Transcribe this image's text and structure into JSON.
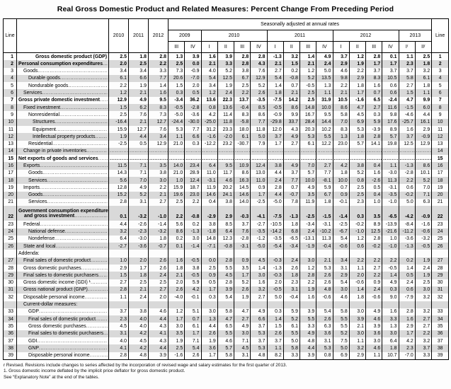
{
  "title": "Real Gross Domestic Product and Related Measures: Percent Change From Preceding Period",
  "header": {
    "line_label": "Line",
    "sa_label": "Seasonally adjusted at annual rates",
    "annual_years": [
      "2010",
      "2011",
      "2012"
    ],
    "year_groups": [
      {
        "year": "2009",
        "quarters": [
          "III",
          "IV"
        ]
      },
      {
        "year": "2010",
        "quarters": [
          "I",
          "II",
          "III",
          "IV"
        ]
      },
      {
        "year": "2011",
        "quarters": [
          "I",
          "II",
          "III",
          "IV"
        ]
      },
      {
        "year": "2012",
        "quarters": [
          "I",
          "II",
          "III",
          "IV"
        ]
      },
      {
        "year": "2013",
        "quarters": [
          "Iʳ",
          "IIʳ"
        ]
      }
    ]
  },
  "rows": [
    {
      "line": "1",
      "label": "Gross domestic product (GDP)",
      "indent": 4,
      "bold": true,
      "values": [
        "2.5",
        "1.8",
        "2.8",
        "1.3",
        "3.9",
        "1.6",
        "3.9",
        "2.8",
        "2.8",
        "-1.3",
        "3.2",
        "1.4",
        "4.9",
        "3.7",
        "1.2",
        "2.8",
        "0.1",
        "1.1",
        "2.5"
      ]
    },
    {
      "line": "2",
      "label": "Personal consumption expenditures",
      "indent": 0,
      "bold": true,
      "values": [
        "2.0",
        "2.5",
        "2.2",
        "2.5",
        "0.0",
        "2.1",
        "3.3",
        "2.8",
        "4.3",
        "2.1",
        "1.5",
        "2.1",
        "2.4",
        "2.9",
        "1.9",
        "1.7",
        "1.7",
        "2.3",
        "1.8"
      ]
    },
    {
      "line": "3",
      "label": "Goods",
      "indent": 1,
      "values": [
        "3.4",
        "3.4",
        "3.3",
        "7.3",
        "-0.9",
        "4.0",
        "5.2",
        "3.8",
        "7.6",
        "2.7",
        "0.2",
        "1.2",
        "5.0",
        "4.6",
        "2.2",
        "3.7",
        "3.7",
        "3.7",
        "3.2"
      ]
    },
    {
      "line": "4",
      "label": "Durable goods",
      "indent": 2,
      "values": [
        "6.1",
        "6.6",
        "7.7",
        "20.6",
        "-7.0",
        "5.4",
        "12.5",
        "6.7",
        "12.9",
        "5.4",
        "-0.8",
        "5.2",
        "13.5",
        "9.8",
        "2.9",
        "8.3",
        "10.5",
        "5.8",
        "6.1"
      ]
    },
    {
      "line": "5",
      "label": "Nondurable goods",
      "indent": 2,
      "values": [
        "2.2",
        "1.9",
        "1.4",
        "1.5",
        "2.0",
        "3.4",
        "1.9",
        "2.5",
        "5.2",
        "1.4",
        "0.7",
        "-0.5",
        "1.3",
        "2.2",
        "1.8",
        "1.6",
        "0.6",
        "2.7",
        "1.8"
      ]
    },
    {
      "line": "6",
      "label": "Services",
      "indent": 1,
      "values": [
        "1.2",
        "2.1",
        "1.6",
        "0.3",
        "0.5",
        "1.2",
        "2.4",
        "2.2",
        "2.6",
        "1.8",
        "2.1",
        "2.5",
        "1.1",
        "2.1",
        "1.7",
        "0.7",
        "0.6",
        "1.5",
        "1.1"
      ]
    },
    {
      "line": "7",
      "label": "Gross private domestic investment",
      "indent": 0,
      "bold": true,
      "values": [
        "12.9",
        "4.9",
        "9.5",
        "-3.4",
        "36.2",
        "13.6",
        "22.3",
        "13.7",
        "-3.5",
        "-7.5",
        "14.2",
        "2.5",
        "31.9",
        "10.5",
        "-1.6",
        "6.5",
        "-2.4",
        "4.7",
        "9.9"
      ]
    },
    {
      "line": "8",
      "label": "Fixed investment",
      "indent": 1,
      "values": [
        "1.5",
        "6.2",
        "8.3",
        "-0.5",
        "-2.8",
        "0.8",
        "13.6",
        "-0.4",
        "8.5",
        "-0.5",
        "8.6",
        "14.8",
        "10.0",
        "8.6",
        "4.7",
        "2.7",
        "11.6",
        "-1.5",
        "6.0"
      ]
    },
    {
      "line": "9",
      "label": "Nonresidential",
      "indent": 2,
      "values": [
        "2.5",
        "7.6",
        "7.3",
        "-5.0",
        "-3.6",
        "4.2",
        "11.4",
        "8.3",
        "8.6",
        "-0.9",
        "9.9",
        "16.7",
        "9.5",
        "5.8",
        "4.5",
        "0.3",
        "9.8",
        "-4.6",
        "4.4"
      ]
    },
    {
      "line": "10",
      "label": "Structures",
      "indent": 3,
      "values": [
        "-16.4",
        "2.1",
        "12.7",
        "-24.4",
        "-30.0",
        "-25.0",
        "11.8",
        "-5.8",
        "7.7",
        "-29.8",
        "33.7",
        "28.4",
        "14.4",
        "7.0",
        "6.9",
        "5.9",
        "17.6",
        "-25.7",
        "16.1"
      ]
    },
    {
      "line": "11",
      "label": "Equipment",
      "indent": 3,
      "values": [
        "15.9",
        "12.7",
        "7.6",
        "5.3",
        "7.7",
        "31.2",
        "23.3",
        "18.0",
        "11.8",
        "12.0",
        "4.3",
        "20.3",
        "10.2",
        "8.3",
        "5.3",
        "-3.9",
        "8.9",
        "1.6",
        "2.9"
      ]
    },
    {
      "line": "12",
      "label": "Intellectual property products",
      "indent": 3,
      "values": [
        "1.9",
        "4.4",
        "3.4",
        "1.1",
        "6.6",
        "-1.6",
        "-2.0",
        "6.1",
        "5.0",
        "3.7",
        "4.9",
        "5.3",
        "5.5",
        "1.3",
        "1.8",
        "2.8",
        "5.7",
        "3.7",
        "-0.9"
      ]
    },
    {
      "line": "13",
      "label": "Residential",
      "indent": 2,
      "values": [
        "-2.5",
        "0.5",
        "12.9",
        "21.0",
        "0.3",
        "-12.2",
        "23.2",
        "-30.7",
        "7.9",
        "1.7",
        "2.7",
        "6.1",
        "12.2",
        "23.0",
        "5.7",
        "14.1",
        "19.8",
        "12.5",
        "12.9"
      ]
    },
    {
      "line": "14",
      "label": "Change in private inventories",
      "indent": 1,
      "values": [
        "...........",
        "...........",
        "...........",
        "...........",
        "...........",
        "...........",
        "...........",
        "...........",
        "...........",
        "...........",
        "...........",
        "...........",
        "...........",
        "...........",
        "...........",
        "...........",
        "...........",
        "...........",
        "..........."
      ]
    },
    {
      "line": "15",
      "label": "Net exports of goods and services",
      "indent": 0,
      "bold": true,
      "values": [
        "...........",
        "...........",
        "...........",
        "...........",
        "...........",
        "...........",
        "...........",
        "...........",
        "...........",
        "...........",
        "...........",
        "...........",
        "...........",
        "...........",
        "...........",
        "...........",
        "...........",
        "...........",
        "..........."
      ]
    },
    {
      "line": "16",
      "label": "Exports",
      "indent": 1,
      "values": [
        "11.5",
        "7.1",
        "3.5",
        "14.0",
        "23.4",
        "6.4",
        "9.5",
        "10.9",
        "12.4",
        "3.8",
        "4.9",
        "7.0",
        "2.7",
        "4.2",
        "3.8",
        "0.4",
        "1.1",
        "-1.3",
        "8.6"
      ]
    },
    {
      "line": "17",
      "label": "Goods",
      "indent": 2,
      "values": [
        "14.3",
        "7.1",
        "3.8",
        "21.0",
        "28.9",
        "11.0",
        "11.7",
        "8.6",
        "13.0",
        "4.4",
        "3.7",
        "5.7",
        "7.7",
        "1.8",
        "5.2",
        "1.6",
        "-3.0",
        "-2.8",
        "10.1"
      ]
    },
    {
      "line": "18",
      "label": "Services",
      "indent": 2,
      "values": [
        "5.6",
        "7.0",
        "3.0",
        "1.0",
        "12.4",
        "-3.1",
        "4.6",
        "16.3",
        "11.0",
        "2.4",
        "7.7",
        "10.0",
        "-8.1",
        "10.0",
        "0.8",
        "-2.6",
        "11.3",
        "2.2",
        "5.2"
      ]
    },
    {
      "line": "19",
      "label": "Imports",
      "indent": 1,
      "values": [
        "12.8",
        "4.9",
        "2.2",
        "15.9",
        "18.7",
        "11.9",
        "20.2",
        "14.5",
        "0.9",
        "2.8",
        "0.7",
        "4.9",
        "5.9",
        "0.7",
        "2.5",
        "0.5",
        "-3.1",
        "0.6",
        "7.0"
      ]
    },
    {
      "line": "20",
      "label": "Goods",
      "indent": 2,
      "values": [
        "15.2",
        "5.2",
        "2.1",
        "19.6",
        "23.0",
        "14.6",
        "24.1",
        "14.6",
        "1.7",
        "4.4",
        "-0.7",
        "3.5",
        "6.7",
        "0.9",
        "2.5",
        "0.4",
        "-3.5",
        "-0.2",
        "7.1"
      ]
    },
    {
      "line": "21",
      "label": "Services",
      "indent": 2,
      "values": [
        "2.8",
        "3.1",
        "2.7",
        "2.5",
        "2.2",
        "0.4",
        "3.8",
        "14.0",
        "-2.5",
        "-5.0",
        "7.8",
        "11.9",
        "1.8",
        "-0.1",
        "2.3",
        "1.0",
        "-1.0",
        "5.0",
        "6.3"
      ]
    },
    {
      "line": "22",
      "label": "Government consumption expenditures",
      "label2": "and gross investment",
      "indent": 0,
      "bold": true,
      "values": [
        "0.1",
        "-3.2",
        "-1.0",
        "2.2",
        "-0.8",
        "-2.9",
        "2.9",
        "-0.3",
        "-4.1",
        "-7.5",
        "-1.3",
        "-2.5",
        "-1.5",
        "-1.4",
        "0.3",
        "3.5",
        "-6.5",
        "-4.2",
        "-0.9"
      ]
    },
    {
      "line": "23",
      "label": "Federal",
      "indent": 1,
      "values": [
        "4.4",
        "-2.6",
        "-1.4",
        "5.6",
        "0.2",
        "3.8",
        "8.5",
        "3.7",
        "-2.7",
        "-10.5",
        "1.8",
        "-3.4",
        "-3.1",
        "-2.5",
        "-0.2",
        "8.9",
        "-13.9",
        "-8.4",
        "-1.6"
      ]
    },
    {
      "line": "24",
      "label": "National defense",
      "indent": 2,
      "values": [
        "3.2",
        "-2.3",
        "-3.2",
        "8.6",
        "-1.3",
        "-1.8",
        "6.4",
        "7.6",
        "-3.5",
        "-14.2",
        "6.8",
        "2.4",
        "-10.2",
        "-6.7",
        "-1.0",
        "12.5",
        "-21.6",
        "-11.2",
        "-0.6"
      ]
    },
    {
      "line": "25",
      "label": "Nondefense",
      "indent": 2,
      "values": [
        "6.4",
        "-3.0",
        "1.8",
        "0.2",
        "3.0",
        "14.8",
        "12.3",
        "-2.8",
        "-1.2",
        "-3.5",
        "-6.5",
        "-13.1",
        "11.3",
        "5.4",
        "1.2",
        "2.8",
        "1.0",
        "-3.6",
        "-3.2"
      ]
    },
    {
      "line": "26",
      "label": "State and local",
      "indent": 1,
      "values": [
        "-2.7",
        "-3.6",
        "-0.7",
        "0.1",
        "-1.4",
        "-7.1",
        "-0.8",
        "-3.1",
        "-5.0",
        "-5.4",
        "-3.4",
        "-1.9",
        "-0.4",
        "-0.6",
        "0.6",
        "-0.2",
        "-1.0",
        "-1.3",
        "-0.5"
      ]
    },
    {
      "section": true,
      "label": "Addenda:",
      "indent": 0
    },
    {
      "line": "27",
      "label": "Final sales of domestic product",
      "indent": 1,
      "values": [
        "1.0",
        "2.0",
        "2.6",
        "1.6",
        "-0.5",
        "0.0",
        "2.8",
        "0.9",
        "4.5",
        "-0.3",
        "2.4",
        "3.0",
        "2.1",
        "3.4",
        "2.2",
        "2.2",
        "2.2",
        "0.2",
        "1.9"
      ]
    },
    {
      "line": "28",
      "label": "Gross domestic purchases",
      "indent": 1,
      "values": [
        "2.9",
        "1.7",
        "2.6",
        "1.8",
        "3.8",
        "2.5",
        "5.5",
        "3.5",
        "1.4",
        "-1.3",
        "2.6",
        "1.2",
        "5.3",
        "3.1",
        "1.1",
        "2.7",
        "-0.5",
        "1.4",
        "2.4"
      ]
    },
    {
      "line": "29",
      "label": "Final sales to domestic purchasers",
      "indent": 1,
      "values": [
        "1.5",
        "1.8",
        "2.4",
        "2.1",
        "-0.5",
        "0.9",
        "4.5",
        "1.7",
        "3.0",
        "-0.3",
        "1.8",
        "2.8",
        "2.6",
        "2.9",
        "2.0",
        "2.2",
        "1.4",
        "0.5",
        "1.9"
      ]
    },
    {
      "line": "30",
      "label": "Gross domestic income (GDI) ¹",
      "indent": 1,
      "values": [
        "2.7",
        "2.5",
        "2.5",
        "2.0",
        "5.9",
        "0.5",
        "2.8",
        "5.2",
        "1.6",
        "2.0",
        "2.3",
        "2.2",
        "2.6",
        "5.4",
        "-0.6",
        "0.9",
        "4.9",
        "2.4",
        "2.5"
      ]
    },
    {
      "line": "31",
      "label": "Gross national product (GNP)",
      "indent": 1,
      "values": [
        "2.8",
        "2.1",
        "2.7",
        "2.6",
        "4.2",
        "1.7",
        "3.9",
        "2.6",
        "3.2",
        "-0.5",
        "3.1",
        "1.9",
        "4.8",
        "3.0",
        "1.4",
        "2.4",
        "0.3",
        "0.6",
        "3.0"
      ]
    },
    {
      "line": "32",
      "label": "Disposable personal income",
      "indent": 1,
      "values": [
        "1.1",
        "2.4",
        "2.0",
        "-4.0",
        "-0.1",
        "0.3",
        "5.4",
        "1.9",
        "2.7",
        "5.0",
        "-0.4",
        "1.6",
        "-0.6",
        "4.6",
        "1.8",
        "-0.6",
        "9.0",
        "-7.9",
        "3.2"
      ]
    },
    {
      "section": true,
      "label": "Current-dollar measures:",
      "indent": 1
    },
    {
      "line": "33",
      "label": "GDP",
      "indent": 2,
      "values": [
        "3.7",
        "3.8",
        "4.6",
        "1.2",
        "5.1",
        "3.0",
        "5.8",
        "4.7",
        "4.9",
        "0.3",
        "5.9",
        "3.9",
        "5.4",
        "5.8",
        "3.0",
        "4.9",
        "1.6",
        "2.8",
        "3.2"
      ]
    },
    {
      "line": "34",
      "label": "Final sales of domestic product",
      "indent": 2,
      "values": [
        "2.3",
        "4.0",
        "4.4",
        "1.7",
        "0.7",
        "1.3",
        "4.7",
        "2.7",
        "6.6",
        "1.4",
        "5.2",
        "5.5",
        "2.6",
        "5.5",
        "3.9",
        "4.6",
        "3.3",
        "1.6",
        "2.7"
      ]
    },
    {
      "line": "35",
      "label": "Gross domestic purchases",
      "indent": 2,
      "values": [
        "4.5",
        "4.0",
        "4.3",
        "3.0",
        "6.1",
        "4.4",
        "6.5",
        "4.9",
        "3.7",
        "1.5",
        "6.1",
        "3.3",
        "6.3",
        "5.5",
        "2.1",
        "3.9",
        "1.3",
        "2.9",
        "2.7"
      ]
    },
    {
      "line": "36",
      "label": "Final sales to domestic purchasers",
      "indent": 2,
      "values": [
        "3.1",
        "4.2",
        "4.1",
        "3.5",
        "1.7",
        "2.6",
        "5.5",
        "3.0",
        "5.3",
        "2.6",
        "5.5",
        "4.9",
        "3.6",
        "5.2",
        "3.0",
        "3.6",
        "3.0",
        "1.7",
        "2.2"
      ]
    },
    {
      "line": "37",
      "label": "GDI",
      "indent": 2,
      "values": [
        "4.0",
        "4.5",
        "4.3",
        "1.9",
        "7.1",
        "1.9",
        "4.6",
        "7.1",
        "3.7",
        "3.7",
        "5.0",
        "4.8",
        "3.1",
        "7.5",
        "1.1",
        "3.0",
        "6.4",
        "4.2",
        "3.2"
      ]
    },
    {
      "line": "38",
      "label": "GNP",
      "indent": 2,
      "values": [
        "4.1",
        "4.2",
        "4.4",
        "2.5",
        "5.4",
        "3.6",
        "5.7",
        "4.5",
        "5.3",
        "1.1",
        "5.8",
        "4.4",
        "5.3",
        "5.0",
        "3.2",
        "4.6",
        "1.8",
        "2.3",
        "3.7"
      ]
    },
    {
      "line": "39",
      "label": "Disposable personal income",
      "indent": 2,
      "values": [
        "2.8",
        "4.8",
        "3.9",
        "-1.6",
        "2.6",
        "1.7",
        "5.8",
        "3.1",
        "4.8",
        "8.2",
        "3.3",
        "3.9",
        "0.8",
        "6.9",
        "2.9",
        "1.1",
        "10.7",
        "-7.0",
        "3.3"
      ]
    }
  ],
  "footnotes": [
    "r Revised. Revisions include changes to series affected by the incorporation of revised wage and salary estimates for the first quarter of 2013.",
    "1. Gross domestic income deflated by the implicit price deflator for gross domestic product.",
    "See “Explanatory Note” at the end of the tables."
  ]
}
